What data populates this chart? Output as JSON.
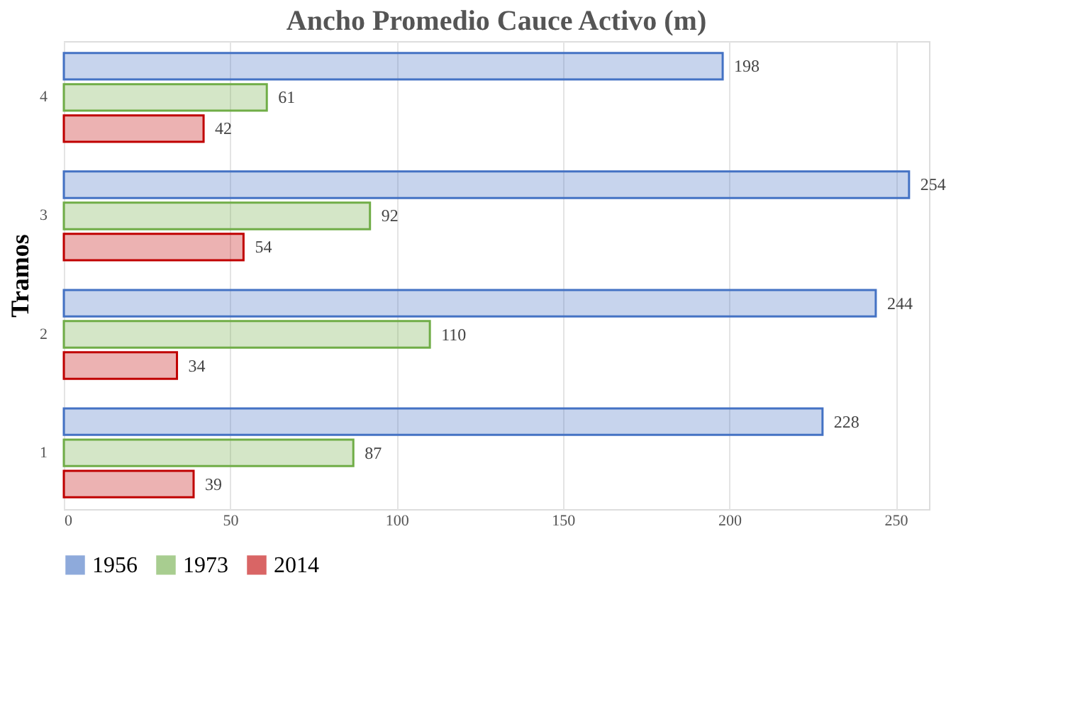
{
  "chart_data": {
    "type": "bar",
    "orientation": "horizontal",
    "title": "Ancho Promedio Cauce Activo (m)",
    "ylabel": "Tramos",
    "categories": [
      "4",
      "3",
      "2",
      "1"
    ],
    "series": [
      {
        "name": "1956",
        "color": "#4472c4",
        "values": [
          198,
          254,
          244,
          228
        ]
      },
      {
        "name": "1973",
        "color": "#70ad47",
        "values": [
          61,
          92,
          110,
          87
        ]
      },
      {
        "name": "2014",
        "color": "#c00000",
        "values": [
          42,
          54,
          34,
          39
        ]
      }
    ],
    "xlim": [
      0,
      260
    ],
    "xticks": [
      0,
      50,
      100,
      150,
      200,
      250
    ],
    "grid": "x",
    "legend": "bottom",
    "data_labels": true
  }
}
